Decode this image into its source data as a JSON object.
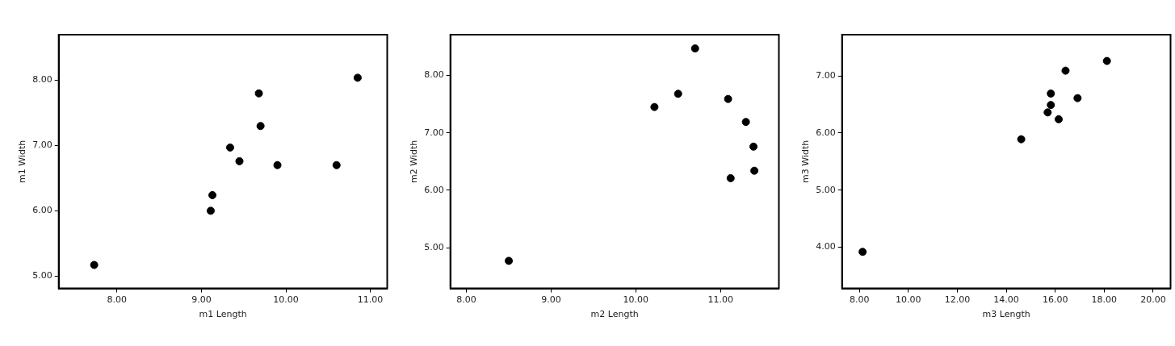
{
  "chart_data": [
    {
      "type": "scatter",
      "xlabel": "m1 Length",
      "ylabel": "m1 Width",
      "marker": "circle",
      "grid": false,
      "legend": false,
      "xlim": [
        7.31,
        11.2
      ],
      "ylim": [
        4.81,
        8.7
      ],
      "xticks": [
        {
          "value": 8,
          "label": "8.00"
        },
        {
          "value": 9,
          "label": "9.00"
        },
        {
          "value": 10,
          "label": "10.00"
        },
        {
          "value": 11,
          "label": "11.00"
        }
      ],
      "yticks": [
        {
          "value": 5,
          "label": "5.00"
        },
        {
          "value": 6,
          "label": "6.00"
        },
        {
          "value": 7,
          "label": "7.00"
        },
        {
          "value": 8,
          "label": "8.00"
        }
      ],
      "series": [
        {
          "color": "#000000",
          "x": [
            7.73,
            9.11,
            9.13,
            9.34,
            9.45,
            9.68,
            9.7,
            9.9,
            10.6,
            10.85
          ],
          "values": [
            5.17,
            6.0,
            6.24,
            6.97,
            6.76,
            7.8,
            7.3,
            6.7,
            6.7,
            8.04
          ]
        }
      ]
    },
    {
      "type": "scatter",
      "xlabel": "m2 Length",
      "ylabel": "m2 Width",
      "marker": "circle",
      "grid": false,
      "legend": false,
      "xlim": [
        7.81,
        11.69
      ],
      "ylim": [
        4.29,
        8.71
      ],
      "xticks": [
        {
          "value": 8,
          "label": "8.00"
        },
        {
          "value": 9,
          "label": "9.00"
        },
        {
          "value": 10,
          "label": "10.00"
        },
        {
          "value": 11,
          "label": "11.00"
        }
      ],
      "yticks": [
        {
          "value": 5,
          "label": "5.00"
        },
        {
          "value": 6,
          "label": "6.00"
        },
        {
          "value": 7,
          "label": "7.00"
        },
        {
          "value": 8,
          "label": "8.00"
        }
      ],
      "series": [
        {
          "color": "#000000",
          "x": [
            8.5,
            10.22,
            10.5,
            10.7,
            11.09,
            11.3,
            11.39,
            11.4,
            11.12
          ],
          "values": [
            4.77,
            7.45,
            7.68,
            8.47,
            7.59,
            7.19,
            6.76,
            6.34,
            6.21
          ]
        }
      ]
    },
    {
      "type": "scatter",
      "xlabel": "m3 Length",
      "ylabel": "m3 Width",
      "marker": "circle",
      "grid": false,
      "legend": false,
      "xlim": [
        7.29,
        20.71
      ],
      "ylim": [
        3.28,
        7.72
      ],
      "xticks": [
        {
          "value": 8,
          "label": "8.00"
        },
        {
          "value": 10,
          "label": "10.00"
        },
        {
          "value": 12,
          "label": "12.00"
        },
        {
          "value": 14,
          "label": "14.00"
        },
        {
          "value": 16,
          "label": "16.00"
        },
        {
          "value": 18,
          "label": "18.00"
        },
        {
          "value": 20,
          "label": "20.00"
        }
      ],
      "yticks": [
        {
          "value": 4,
          "label": "4.00"
        },
        {
          "value": 5,
          "label": "5.00"
        },
        {
          "value": 6,
          "label": "6.00"
        },
        {
          "value": 7,
          "label": "7.00"
        }
      ],
      "series": [
        {
          "color": "#000000",
          "x": [
            8.13,
            14.61,
            15.69,
            15.82,
            15.82,
            16.14,
            16.42,
            16.91,
            18.11
          ],
          "values": [
            3.92,
            5.89,
            6.36,
            6.49,
            6.69,
            6.24,
            7.09,
            6.61,
            7.26
          ]
        }
      ]
    }
  ]
}
